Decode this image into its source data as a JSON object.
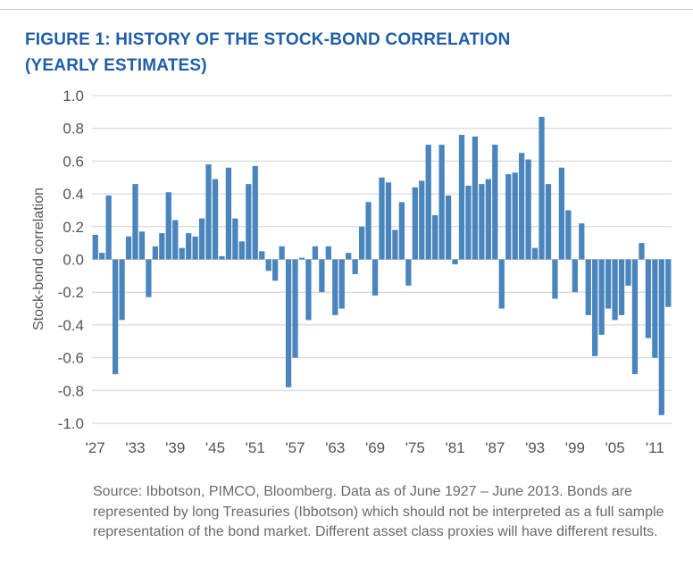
{
  "figure": {
    "title_line1": "FIGURE 1: HISTORY OF THE STOCK-BOND CORRELATION",
    "title_line2": "(YEARLY ESTIMATES)",
    "source": "Source: Ibbotson, PIMCO, Bloomberg. Data as of June 1927 – June 2013. Bonds are represented by long Treasuries (Ibbotson) which should not be interpreted as a full sample representation of the bond market. Different asset class proxies will have different results."
  },
  "colors": {
    "title": "#1f5ea8",
    "bar": "#4a85bd",
    "grid": "#d0d0d0",
    "text": "#555555"
  },
  "chart_data": {
    "type": "bar",
    "ylabel": "Stock-bond correlation",
    "xlabel": "",
    "ylim": [
      -1.0,
      1.0
    ],
    "yticks": [
      1.0,
      0.8,
      0.6,
      0.4,
      0.2,
      0.0,
      -0.2,
      -0.4,
      -0.6,
      -0.8,
      -1.0
    ],
    "ytick_labels": [
      "1.0",
      "0.8",
      "0.6",
      "0.4",
      "0.2",
      "0.0",
      "-0.2",
      "-0.4",
      "-0.6",
      "-0.8",
      "-1.0"
    ],
    "xtick_labels": [
      "'27",
      "'33",
      "'39",
      "'45",
      "'51",
      "'57",
      "'63",
      "'69",
      "'75",
      "'81",
      "'87",
      "'93",
      "'99",
      "'05",
      "'11"
    ],
    "xtick_years": [
      1927,
      1933,
      1939,
      1945,
      1951,
      1957,
      1963,
      1969,
      1975,
      1981,
      1987,
      1993,
      1999,
      2005,
      2011
    ],
    "grid": true,
    "categories": [
      1927,
      1928,
      1929,
      1930,
      1931,
      1932,
      1933,
      1934,
      1935,
      1936,
      1937,
      1938,
      1939,
      1940,
      1941,
      1942,
      1943,
      1944,
      1945,
      1946,
      1947,
      1948,
      1949,
      1950,
      1951,
      1952,
      1953,
      1954,
      1955,
      1956,
      1957,
      1958,
      1959,
      1960,
      1961,
      1962,
      1963,
      1964,
      1965,
      1966,
      1967,
      1968,
      1969,
      1970,
      1971,
      1972,
      1973,
      1974,
      1975,
      1976,
      1977,
      1978,
      1979,
      1980,
      1981,
      1982,
      1983,
      1984,
      1985,
      1986,
      1987,
      1988,
      1989,
      1990,
      1991,
      1992,
      1993,
      1994,
      1995,
      1996,
      1997,
      1998,
      1999,
      2000,
      2001,
      2002,
      2003,
      2004,
      2005,
      2006,
      2007,
      2008,
      2009,
      2010,
      2011,
      2012,
      2013
    ],
    "values": [
      0.15,
      0.04,
      0.39,
      -0.7,
      -0.37,
      0.14,
      0.46,
      0.17,
      -0.23,
      0.08,
      0.16,
      0.41,
      0.24,
      0.07,
      0.16,
      0.14,
      0.25,
      0.58,
      0.49,
      0.02,
      0.56,
      0.25,
      0.11,
      0.46,
      0.57,
      0.05,
      -0.07,
      -0.13,
      0.08,
      -0.78,
      -0.6,
      0.01,
      -0.37,
      0.08,
      -0.2,
      0.08,
      -0.34,
      -0.3,
      0.04,
      -0.09,
      0.2,
      0.35,
      -0.22,
      0.5,
      0.47,
      0.18,
      0.35,
      -0.16,
      0.44,
      0.48,
      0.7,
      0.27,
      0.7,
      0.39,
      -0.03,
      0.76,
      0.45,
      0.75,
      0.46,
      0.49,
      0.7,
      -0.3,
      0.52,
      0.53,
      0.65,
      0.61,
      0.07,
      0.87,
      0.46,
      -0.24,
      0.56,
      0.3,
      -0.2,
      0.22,
      -0.34,
      -0.59,
      -0.46,
      -0.3,
      -0.37,
      -0.34,
      -0.16,
      -0.7,
      0.1,
      -0.48,
      -0.6,
      -0.95,
      -0.29
    ]
  }
}
